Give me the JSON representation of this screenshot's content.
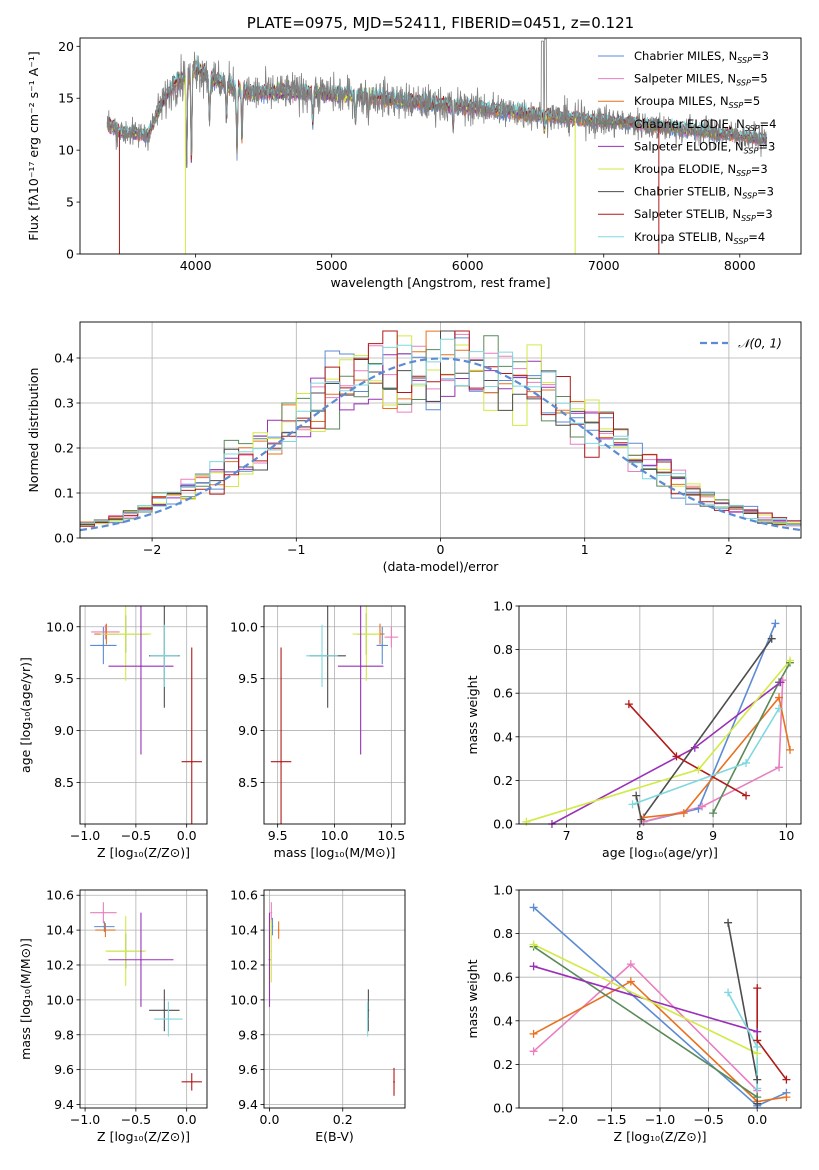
{
  "colors": {
    "chabrier_miles": "#5b8bd4",
    "salpeter_miles": "#e97fbf",
    "kroupa_miles": "#e8711f",
    "chabrier_elodie": "#5a8a5a",
    "salpeter_elodie": "#9a30b8",
    "kroupa_elodie": "#d2ea44",
    "chabrier_stelib": "#4d4d4d",
    "salpeter_stelib": "#b01a1a",
    "kroupa_stelib": "#7fd8e0",
    "data": "#808080",
    "normal": "#5b8bd4",
    "grid": "#b0b0b0"
  },
  "chart_data": [
    {
      "id": "spectrum",
      "type": "line",
      "title": "PLATE=0975, MJD=52411, FIBERID=0451, z=0.121",
      "xlabel": "wavelength [Angstrom, rest frame]",
      "ylabel": "Flux [fλ10⁻¹⁷ erg cm⁻² s⁻¹ A⁻¹]",
      "xlim": [
        3150,
        8450
      ],
      "ylim": [
        0,
        20.8
      ],
      "xticks": [
        4000,
        5000,
        6000,
        7000,
        8000
      ],
      "yticks": [
        0,
        5,
        10,
        15,
        20
      ],
      "grid": false,
      "legend_position": "top-right",
      "legend": [
        {
          "key": "chabrier_miles",
          "text": "Chabrier MILES, N",
          "sub": "SSP",
          "suffix": "=3"
        },
        {
          "key": "salpeter_miles",
          "text": "Salpeter MILES, N",
          "sub": "SSP",
          "suffix": "=5"
        },
        {
          "key": "kroupa_miles",
          "text": "Kroupa MILES, N",
          "sub": "SSP",
          "suffix": "=5"
        },
        {
          "key": "chabrier_elodie",
          "text": "Chabrier ELODIE, N",
          "sub": "SSP",
          "suffix": "=4"
        },
        {
          "key": "salpeter_elodie",
          "text": "Salpeter ELODIE, N",
          "sub": "SSP",
          "suffix": "=3"
        },
        {
          "key": "kroupa_elodie",
          "text": "Kroupa ELODIE, N",
          "sub": "SSP",
          "suffix": "=3"
        },
        {
          "key": "chabrier_stelib",
          "text": "Chabrier STELIB, N",
          "sub": "SSP",
          "suffix": "=3"
        },
        {
          "key": "salpeter_stelib",
          "text": "Salpeter STELIB, N",
          "sub": "SSP",
          "suffix": "=3"
        },
        {
          "key": "kroupa_stelib",
          "text": "Kroupa STELIB, N",
          "sub": "SSP",
          "suffix": "=4"
        }
      ],
      "continuum": {
        "x": [
          3350,
          3450,
          3550,
          3650,
          3750,
          3850,
          3950,
          4000,
          4100,
          4200,
          4300,
          4400,
          4600,
          4800,
          5000,
          5200,
          5400,
          5600,
          5800,
          6000,
          6200,
          6400,
          6600,
          6800,
          7000,
          7200,
          7400,
          7600,
          7800,
          8000,
          8200
        ],
        "y": [
          12.5,
          11.8,
          11.6,
          11.5,
          14.5,
          16.5,
          17.2,
          18.0,
          17.0,
          16.5,
          16.0,
          15.5,
          15.6,
          15.6,
          15.4,
          15.2,
          15.0,
          14.6,
          14.4,
          14.2,
          13.9,
          13.6,
          13.3,
          13.0,
          12.8,
          12.6,
          12.3,
          12.0,
          11.7,
          11.4,
          11.0
        ]
      },
      "features": [
        {
          "x": 3934,
          "depth": 0.5
        },
        {
          "x": 3969,
          "depth": 0.5
        },
        {
          "x": 4102,
          "depth": 0.25
        },
        {
          "x": 4227,
          "depth": 0.2
        },
        {
          "x": 4304,
          "depth": 0.4
        },
        {
          "x": 4341,
          "depth": 0.3
        },
        {
          "x": 4861,
          "depth": 0.2
        },
        {
          "x": 5175,
          "depth": 0.15
        },
        {
          "x": 5270,
          "depth": 0.1
        },
        {
          "x": 5893,
          "depth": 0.15
        },
        {
          "x": 6563,
          "depth": 0.1
        }
      ]
    },
    {
      "id": "residuals",
      "type": "step",
      "xlabel": "(data-model)/error",
      "ylabel": "Normed distribution",
      "xlim": [
        -2.5,
        2.5
      ],
      "ylim": [
        0,
        0.48
      ],
      "xticks": [
        -2,
        -1,
        0,
        1,
        2
      ],
      "yticks": [
        0.0,
        0.1,
        0.2,
        0.3,
        0.4
      ],
      "grid": true,
      "legend_position": "top-right",
      "legend": [
        {
          "key": "normal",
          "text": "𝒩(0, 1)"
        }
      ],
      "bin_width": 0.1
    },
    {
      "id": "age_vs_Z",
      "type": "errorbar",
      "xlabel": "Z [log₁₀(Z/Z⊙)]",
      "ylabel": "age  [log₁₀(age/yr)]",
      "xlim": [
        -1.05,
        0.2
      ],
      "ylim": [
        8.1,
        10.2
      ],
      "xticks": [
        -1.0,
        -0.5,
        0.0
      ],
      "yticks": [
        8.5,
        9.0,
        9.5,
        10.0
      ],
      "grid": true,
      "points": [
        {
          "key": "chabrier_miles",
          "x": -0.82,
          "y": 9.82,
          "xerr": 0.13,
          "yerr": 0.18
        },
        {
          "key": "salpeter_miles",
          "x": -0.8,
          "y": 9.95,
          "xerr": 0.14,
          "yerr": 0.07
        },
        {
          "key": "kroupa_miles",
          "x": -0.79,
          "y": 9.93,
          "xerr": 0.12,
          "yerr": 0.1
        },
        {
          "key": "chabrier_elodie",
          "x": -0.6,
          "y": 9.93,
          "xerr": 0.22,
          "yerr": 0.18
        },
        {
          "key": "kroupa_elodie",
          "x": -0.6,
          "y": 9.93,
          "xerr": 0.25,
          "yerr": 0.45
        },
        {
          "key": "salpeter_elodie",
          "x": -0.45,
          "y": 9.62,
          "xerr": 0.32,
          "yerr": 0.85
        },
        {
          "key": "chabrier_stelib",
          "x": -0.22,
          "y": 9.72,
          "xerr": 0.15,
          "yerr": 0.5
        },
        {
          "key": "kroupa_stelib",
          "x": -0.22,
          "y": 9.72,
          "xerr": 0.14,
          "yerr": 0.3
        },
        {
          "key": "salpeter_stelib",
          "x": 0.05,
          "y": 8.7,
          "xerr": 0.1,
          "yerr": 1.1
        }
      ]
    },
    {
      "id": "age_vs_mass",
      "type": "errorbar",
      "xlabel": "mass [log₁₀(M/M⊙)]",
      "ylabel": "",
      "xlim": [
        9.38,
        10.62
      ],
      "ylim": [
        8.1,
        10.2
      ],
      "xticks": [
        9.5,
        10.0,
        10.5
      ],
      "yticks": [
        8.5,
        9.0,
        9.5,
        10.0
      ],
      "grid": true,
      "points": [
        {
          "key": "salpeter_miles",
          "x": 10.5,
          "y": 9.9,
          "xerr": 0.06,
          "yerr": 0.1
        },
        {
          "key": "chabrier_miles",
          "x": 10.42,
          "y": 9.82,
          "xerr": 0.05,
          "yerr": 0.18
        },
        {
          "key": "kroupa_miles",
          "x": 10.4,
          "y": 9.93,
          "xerr": 0.04,
          "yerr": 0.1
        },
        {
          "key": "chabrier_elodie",
          "x": 10.28,
          "y": 9.93,
          "xerr": 0.08,
          "yerr": 0.2
        },
        {
          "key": "kroupa_elodie",
          "x": 10.28,
          "y": 9.93,
          "xerr": 0.12,
          "yerr": 0.45
        },
        {
          "key": "salpeter_elodie",
          "x": 10.23,
          "y": 9.62,
          "xerr": 0.2,
          "yerr": 0.85
        },
        {
          "key": "chabrier_stelib",
          "x": 9.94,
          "y": 9.72,
          "xerr": 0.16,
          "yerr": 0.5
        },
        {
          "key": "kroupa_stelib",
          "x": 9.89,
          "y": 9.72,
          "xerr": 0.14,
          "yerr": 0.3
        },
        {
          "key": "salpeter_stelib",
          "x": 9.53,
          "y": 8.7,
          "xerr": 0.09,
          "yerr": 1.1
        }
      ]
    },
    {
      "id": "weight_vs_age",
      "type": "line",
      "xlabel": "age  [log₁₀(age/yr)]",
      "ylabel": "mass weight",
      "xlim": [
        6.35,
        10.2
      ],
      "ylim": [
        0,
        1.0
      ],
      "xticks": [
        7,
        8,
        9,
        10
      ],
      "yticks": [
        0.0,
        0.2,
        0.4,
        0.6,
        0.8,
        1.0
      ],
      "grid": true,
      "series": [
        {
          "key": "chabrier_miles",
          "x": [
            8.05,
            8.8,
            9.85
          ],
          "y": [
            0.01,
            0.07,
            0.92
          ]
        },
        {
          "key": "salpeter_miles",
          "x": [
            8.05,
            8.85,
            9.9,
            9.95
          ],
          "y": [
            0.01,
            0.08,
            0.26,
            0.66
          ]
        },
        {
          "key": "kroupa_miles",
          "x": [
            8.05,
            8.6,
            9.9,
            10.05
          ],
          "y": [
            0.03,
            0.05,
            0.58,
            0.34
          ]
        },
        {
          "key": "chabrier_elodie",
          "x": [
            9.0,
            9.9,
            10.05
          ],
          "y": [
            0.05,
            0.65,
            0.74
          ]
        },
        {
          "key": "salpeter_elodie",
          "x": [
            6.8,
            8.75,
            9.92
          ],
          "y": [
            0.0,
            0.35,
            0.65
          ]
        },
        {
          "key": "kroupa_elodie",
          "x": [
            6.45,
            8.8,
            10.05
          ],
          "y": [
            0.01,
            0.25,
            0.75
          ]
        },
        {
          "key": "chabrier_stelib",
          "x": [
            7.95,
            8.02,
            9.8
          ],
          "y": [
            0.13,
            0.02,
            0.85
          ]
        },
        {
          "key": "salpeter_stelib",
          "x": [
            7.85,
            8.5,
            9.45
          ],
          "y": [
            0.55,
            0.31,
            0.13
          ]
        },
        {
          "key": "kroupa_stelib",
          "x": [
            7.9,
            9.45,
            9.9
          ],
          "y": [
            0.09,
            0.28,
            0.53
          ]
        }
      ]
    },
    {
      "id": "mass_vs_Z",
      "type": "errorbar",
      "xlabel": "Z [log₁₀(Z/Z⊙)]",
      "ylabel": "mass [log₁₀(M/M⊙)]",
      "xlim": [
        -1.05,
        0.2
      ],
      "ylim": [
        9.38,
        10.63
      ],
      "xticks": [
        -1.0,
        -0.5,
        0.0
      ],
      "yticks": [
        9.4,
        9.6,
        9.8,
        10.0,
        10.2,
        10.4,
        10.6
      ],
      "grid": true,
      "points": [
        {
          "key": "salpeter_miles",
          "x": -0.82,
          "y": 10.5,
          "xerr": 0.13,
          "yerr": 0.06
        },
        {
          "key": "chabrier_miles",
          "x": -0.81,
          "y": 10.42,
          "xerr": 0.1,
          "yerr": 0.03
        },
        {
          "key": "kroupa_miles",
          "x": -0.8,
          "y": 10.4,
          "xerr": 0.1,
          "yerr": 0.04
        },
        {
          "key": "chabrier_elodie",
          "x": -0.6,
          "y": 10.28,
          "xerr": 0.18,
          "yerr": 0.1
        },
        {
          "key": "kroupa_elodie",
          "x": -0.6,
          "y": 10.28,
          "xerr": 0.2,
          "yerr": 0.2
        },
        {
          "key": "salpeter_elodie",
          "x": -0.45,
          "y": 10.23,
          "xerr": 0.32,
          "yerr": 0.27
        },
        {
          "key": "chabrier_stelib",
          "x": -0.22,
          "y": 9.94,
          "xerr": 0.15,
          "yerr": 0.12
        },
        {
          "key": "kroupa_stelib",
          "x": -0.18,
          "y": 9.89,
          "xerr": 0.14,
          "yerr": 0.1
        },
        {
          "key": "salpeter_stelib",
          "x": 0.05,
          "y": 9.53,
          "xerr": 0.1,
          "yerr": 0.05
        }
      ]
    },
    {
      "id": "mass_vs_ebv",
      "type": "errorbar",
      "xlabel": "E(B-V)",
      "ylabel": "",
      "xlim": [
        -0.015,
        0.37
      ],
      "ylim": [
        9.38,
        10.63
      ],
      "xticks": [
        0.0,
        0.2
      ],
      "yticks": [
        9.4,
        9.6,
        9.8,
        10.0,
        10.2,
        10.4,
        10.6
      ],
      "grid": true,
      "points": [
        {
          "key": "salpeter_miles",
          "x": 0.005,
          "y": 10.5,
          "xerr": 0.0,
          "yerr": 0.06
        },
        {
          "key": "chabrier_miles",
          "x": 0.008,
          "y": 10.42,
          "xerr": 0.0,
          "yerr": 0.05
        },
        {
          "key": "kroupa_miles",
          "x": 0.025,
          "y": 10.4,
          "xerr": 0.0,
          "yerr": 0.05
        },
        {
          "key": "kroupa_elodie",
          "x": 0.005,
          "y": 10.28,
          "xerr": 0.0,
          "yerr": 0.18
        },
        {
          "key": "salpeter_elodie",
          "x": 0.0,
          "y": 10.23,
          "xerr": 0.0,
          "yerr": 0.27
        },
        {
          "key": "chabrier_stelib",
          "x": 0.27,
          "y": 9.94,
          "xerr": 0.0,
          "yerr": 0.12
        },
        {
          "key": "kroupa_stelib",
          "x": 0.268,
          "y": 9.89,
          "xerr": 0.0,
          "yerr": 0.1
        },
        {
          "key": "salpeter_stelib",
          "x": 0.34,
          "y": 9.53,
          "xerr": 0.0,
          "yerr": 0.08
        }
      ]
    },
    {
      "id": "weight_vs_Z",
      "type": "line",
      "xlabel": "Z [log₁₀(Z/Z⊙)]",
      "ylabel": "mass weight",
      "xlim": [
        -2.45,
        0.45
      ],
      "ylim": [
        0,
        1.0
      ],
      "xticks": [
        -2.0,
        -1.5,
        -1.0,
        -0.5,
        0.0
      ],
      "yticks": [
        0.0,
        0.2,
        0.4,
        0.6,
        0.8,
        1.0
      ],
      "grid": true,
      "series": [
        {
          "key": "chabrier_miles",
          "x": [
            -2.3,
            0.0,
            0.3
          ],
          "y": [
            0.92,
            0.01,
            0.07
          ]
        },
        {
          "key": "salpeter_miles",
          "x": [
            -2.3,
            -1.3,
            0.0
          ],
          "y": [
            0.26,
            0.66,
            0.08
          ]
        },
        {
          "key": "kroupa_miles",
          "x": [
            -2.3,
            -1.3,
            0.0,
            0.3
          ],
          "y": [
            0.34,
            0.58,
            0.03,
            0.05
          ]
        },
        {
          "key": "chabrier_elodie",
          "x": [
            -2.3,
            0.0
          ],
          "y": [
            0.74,
            0.05
          ]
        },
        {
          "key": "salpeter_elodie",
          "x": [
            -2.3,
            0.0
          ],
          "y": [
            0.65,
            0.35
          ]
        },
        {
          "key": "kroupa_elodie",
          "x": [
            -2.3,
            0.0
          ],
          "y": [
            0.75,
            0.25
          ]
        },
        {
          "key": "chabrier_stelib",
          "x": [
            -0.3,
            0.0,
            0.0
          ],
          "y": [
            0.85,
            0.13,
            0.02
          ]
        },
        {
          "key": "salpeter_stelib",
          "x": [
            0.0,
            0.0,
            0.3
          ],
          "y": [
            0.55,
            0.31,
            0.13
          ]
        },
        {
          "key": "kroupa_stelib",
          "x": [
            -0.3,
            0.0,
            0.0
          ],
          "y": [
            0.53,
            0.28,
            0.09
          ]
        }
      ]
    }
  ]
}
